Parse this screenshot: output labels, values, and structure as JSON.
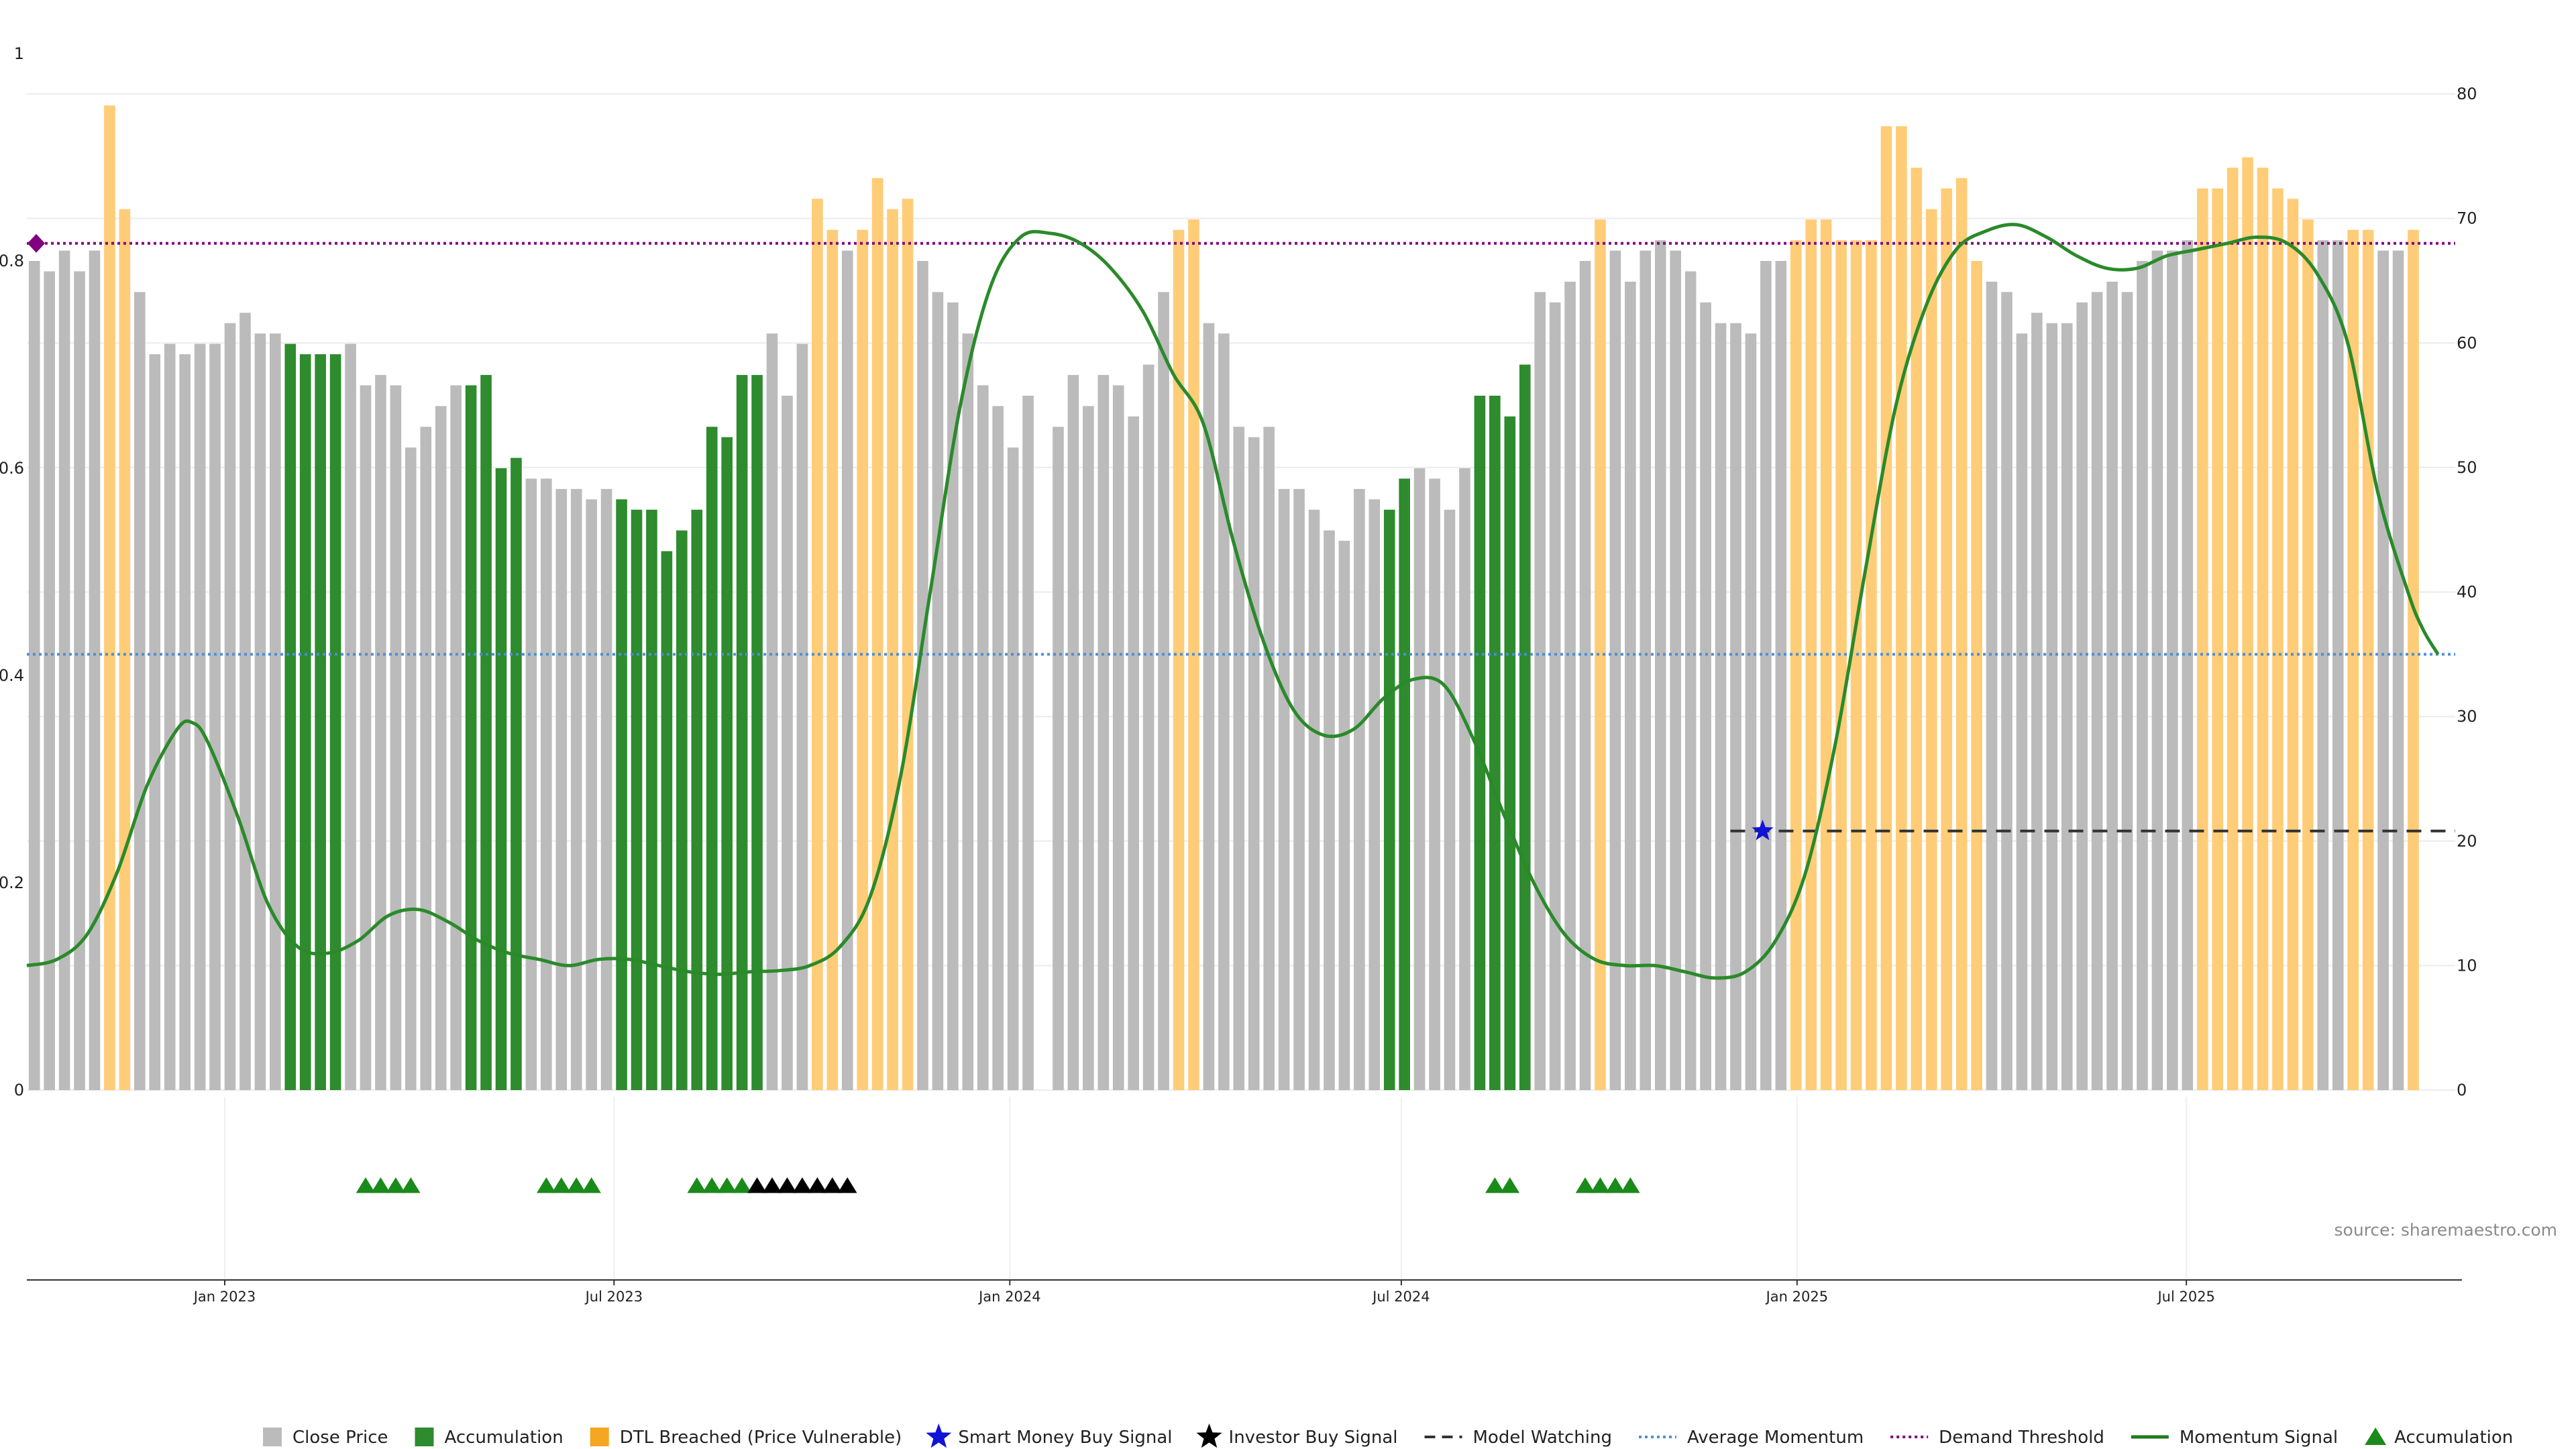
{
  "chart_data": {
    "type": "bar",
    "source": "source: sharemaestro.com",
    "left_axis": {
      "ticks": [
        "0",
        "0.2",
        "0.4",
        "0.6",
        "0.8",
        "1"
      ],
      "range": [
        0,
        1
      ]
    },
    "right_axis": {
      "ticks": [
        "0",
        "10",
        "20",
        "30",
        "40",
        "50",
        "60",
        "70",
        "80"
      ],
      "range": [
        0,
        80
      ]
    },
    "x_axis": {
      "range": [
        "2022-10-01",
        "2025-11-03"
      ],
      "ticks": [
        {
          "date": "2023-01-01",
          "label": "Jan 2023"
        },
        {
          "date": "2023-07-01",
          "label": "Jul 2023"
        },
        {
          "date": "2024-01-01",
          "label": "Jan 2024"
        },
        {
          "date": "2024-07-01",
          "label": "Jul 2024"
        },
        {
          "date": "2025-01-01",
          "label": "Jan 2025"
        },
        {
          "date": "2025-07-01",
          "label": "Jul 2025"
        }
      ]
    },
    "bars": {
      "start_date": "2022-10-01",
      "interval_days": 7,
      "values": [
        0.8,
        0.79,
        0.81,
        0.79,
        0.81,
        0.95,
        0.85,
        0.77,
        0.71,
        0.72,
        0.71,
        0.72,
        0.72,
        0.74,
        0.75,
        0.73,
        0.73,
        0.72,
        0.71,
        0.71,
        0.71,
        0.72,
        0.68,
        0.69,
        0.68,
        0.62,
        0.64,
        0.66,
        0.68,
        0.68,
        0.69,
        0.6,
        0.61,
        0.59,
        0.59,
        0.58,
        0.58,
        0.57,
        0.58,
        0.57,
        0.56,
        0.56,
        0.52,
        0.54,
        0.56,
        0.64,
        0.63,
        0.69,
        0.69,
        0.73,
        0.67,
        0.72,
        0.86,
        0.83,
        0.81,
        0.83,
        0.88,
        0.85,
        0.86,
        0.8,
        0.77,
        0.76,
        0.73,
        0.68,
        0.66,
        0.62,
        0.67,
        null,
        0.64,
        0.69,
        0.66,
        0.69,
        0.68,
        0.65,
        0.7,
        0.77,
        0.83,
        0.84,
        0.74,
        0.73,
        0.64,
        0.63,
        0.64,
        0.58,
        0.58,
        0.56,
        0.54,
        0.53,
        0.58,
        0.57,
        0.56,
        0.59,
        0.6,
        0.59,
        0.56,
        0.6,
        0.67,
        0.67,
        0.65,
        0.7,
        0.77,
        0.76,
        0.78,
        0.8,
        0.84,
        0.81,
        0.78,
        0.81,
        0.82,
        0.81,
        0.79,
        0.76,
        0.74,
        0.74,
        0.73,
        0.8,
        0.8,
        0.82,
        0.84,
        0.84,
        0.82,
        0.82,
        0.82,
        0.93,
        0.93,
        0.89,
        0.85,
        0.87,
        0.88,
        0.8,
        0.78,
        0.77,
        0.73,
        0.75,
        0.74,
        0.74,
        0.76,
        0.77,
        0.78,
        0.77,
        0.8,
        0.81,
        0.81,
        0.82,
        0.87,
        0.87,
        0.89,
        0.9,
        0.89,
        0.87,
        0.86,
        0.84,
        0.82,
        0.82,
        0.83,
        0.83,
        0.81,
        0.81,
        0.83
      ],
      "categories": [
        "close",
        "close",
        "close",
        "close",
        "close",
        "dtl",
        "dtl",
        "close",
        "close",
        "close",
        "close",
        "close",
        "close",
        "close",
        "close",
        "close",
        "close",
        "acc",
        "acc",
        "acc",
        "acc",
        "close",
        "close",
        "close",
        "close",
        "close",
        "close",
        "close",
        "close",
        "acc",
        "acc",
        "acc",
        "acc",
        "close",
        "close",
        "close",
        "close",
        "close",
        "close",
        "acc",
        "acc",
        "acc",
        "acc",
        "acc",
        "acc",
        "acc",
        "acc",
        "acc",
        "acc",
        "close",
        "close",
        "close",
        "dtl",
        "dtl",
        "close",
        "dtl",
        "dtl",
        "dtl",
        "dtl",
        "close",
        "close",
        "close",
        "close",
        "close",
        "close",
        "close",
        "close",
        null,
        "close",
        "close",
        "close",
        "close",
        "close",
        "close",
        "close",
        "close",
        "dtl",
        "dtl",
        "close",
        "close",
        "close",
        "close",
        "close",
        "close",
        "close",
        "close",
        "close",
        "close",
        "close",
        "close",
        "acc",
        "acc",
        "close",
        "close",
        "close",
        "close",
        "acc",
        "acc",
        "acc",
        "acc",
        "close",
        "close",
        "close",
        "close",
        "dtl",
        "close",
        "close",
        "close",
        "close",
        "close",
        "close",
        "close",
        "close",
        "close",
        "close",
        "close",
        "close",
        "dtl",
        "dtl",
        "dtl",
        "dtl",
        "dtl",
        "dtl",
        "dtl",
        "dtl",
        "dtl",
        "dtl",
        "dtl",
        "dtl",
        "dtl",
        "close",
        "close",
        "close",
        "close",
        "close",
        "close",
        "close",
        "close",
        "close",
        "close",
        "close",
        "close",
        "close",
        "close",
        "dtl",
        "dtl",
        "dtl",
        "dtl",
        "dtl",
        "dtl",
        "dtl",
        "dtl",
        "close",
        "close",
        "dtl",
        "dtl",
        "close",
        "close",
        "dtl"
      ]
    },
    "series": [
      {
        "name": "Momentum Signal",
        "axis": "right",
        "points": [
          [
            "2022-10-01",
            10.0
          ],
          [
            "2022-10-15",
            10.5
          ],
          [
            "2022-10-29",
            12.5
          ],
          [
            "2022-11-12",
            17.5
          ],
          [
            "2022-11-26",
            24.5
          ],
          [
            "2022-12-10",
            29.0
          ],
          [
            "2022-12-17",
            29.5
          ],
          [
            "2022-12-24",
            28.0
          ],
          [
            "2023-01-07",
            22.0
          ],
          [
            "2023-01-21",
            15.0
          ],
          [
            "2023-02-04",
            11.5
          ],
          [
            "2023-02-18",
            11.0
          ],
          [
            "2023-03-04",
            12.0
          ],
          [
            "2023-03-18",
            14.0
          ],
          [
            "2023-04-01",
            14.5
          ],
          [
            "2023-04-15",
            13.5
          ],
          [
            "2023-04-29",
            12.0
          ],
          [
            "2023-05-13",
            11.0
          ],
          [
            "2023-05-27",
            10.5
          ],
          [
            "2023-06-10",
            10.0
          ],
          [
            "2023-06-24",
            10.5
          ],
          [
            "2023-07-08",
            10.5
          ],
          [
            "2023-07-22",
            10.0
          ],
          [
            "2023-08-05",
            9.5
          ],
          [
            "2023-08-19",
            9.3
          ],
          [
            "2023-09-02",
            9.5
          ],
          [
            "2023-09-16",
            9.6
          ],
          [
            "2023-09-30",
            10.0
          ],
          [
            "2023-10-14",
            11.5
          ],
          [
            "2023-10-28",
            15.5
          ],
          [
            "2023-11-11",
            25.0
          ],
          [
            "2023-11-25",
            40.0
          ],
          [
            "2023-12-09",
            55.0
          ],
          [
            "2023-12-23",
            64.5
          ],
          [
            "2024-01-06",
            68.5
          ],
          [
            "2024-01-20",
            68.8
          ],
          [
            "2024-02-03",
            68.0
          ],
          [
            "2024-02-17",
            66.0
          ],
          [
            "2024-03-03",
            62.5
          ],
          [
            "2024-03-17",
            57.5
          ],
          [
            "2024-03-31",
            53.5
          ],
          [
            "2024-04-14",
            44.0
          ],
          [
            "2024-04-28",
            36.0
          ],
          [
            "2024-05-12",
            30.5
          ],
          [
            "2024-05-26",
            28.5
          ],
          [
            "2024-06-09",
            29.0
          ],
          [
            "2024-06-23",
            31.5
          ],
          [
            "2024-07-07",
            33.0
          ],
          [
            "2024-07-21",
            32.5
          ],
          [
            "2024-08-04",
            28.0
          ],
          [
            "2024-08-18",
            22.0
          ],
          [
            "2024-09-01",
            16.5
          ],
          [
            "2024-09-15",
            12.5
          ],
          [
            "2024-09-29",
            10.5
          ],
          [
            "2024-10-13",
            10.0
          ],
          [
            "2024-10-27",
            10.0
          ],
          [
            "2024-11-10",
            9.5
          ],
          [
            "2024-11-24",
            9.0
          ],
          [
            "2024-12-08",
            9.5
          ],
          [
            "2024-12-22",
            12.0
          ],
          [
            "2025-01-05",
            17.5
          ],
          [
            "2025-01-19",
            28.0
          ],
          [
            "2025-02-02",
            42.0
          ],
          [
            "2025-02-16",
            55.0
          ],
          [
            "2025-03-02",
            63.0
          ],
          [
            "2025-03-16",
            67.5
          ],
          [
            "2025-03-30",
            69.0
          ],
          [
            "2025-04-13",
            69.5
          ],
          [
            "2025-04-27",
            68.5
          ],
          [
            "2025-05-11",
            67.0
          ],
          [
            "2025-05-25",
            66.0
          ],
          [
            "2025-06-08",
            66.0
          ],
          [
            "2025-06-22",
            67.0
          ],
          [
            "2025-07-06",
            67.5
          ],
          [
            "2025-07-20",
            68.0
          ],
          [
            "2025-08-03",
            68.5
          ],
          [
            "2025-08-17",
            68.0
          ],
          [
            "2025-08-31",
            65.5
          ],
          [
            "2025-09-14",
            60.0
          ],
          [
            "2025-09-28",
            48.0
          ],
          [
            "2025-10-12",
            40.0
          ],
          [
            "2025-10-19",
            37.0
          ],
          [
            "2025-10-26",
            35.0
          ]
        ]
      }
    ],
    "reference_lines": [
      {
        "name": "Average Momentum",
        "axis": "right",
        "value": 35.0,
        "color": "#4c8fd6"
      },
      {
        "name": "Demand Threshold",
        "axis": "right",
        "value": 68.0,
        "color": "#800080"
      },
      {
        "name": "Model Watching",
        "axis": "left",
        "value": 0.25,
        "from_date": "2024-12-01",
        "color": "#333333"
      }
    ],
    "signals": {
      "smart_money_buy": [
        {
          "date": "2024-12-16",
          "value": 0.25
        }
      ],
      "accumulation_markers": [
        "2023-03-04",
        "2023-03-11",
        "2023-03-18",
        "2023-03-25",
        "2023-05-27",
        "2023-06-03",
        "2023-06-10",
        "2023-06-17",
        "2023-08-05",
        "2023-08-12",
        "2023-08-19",
        "2023-08-26",
        "2024-08-10",
        "2024-08-17",
        "2024-09-21",
        "2024-09-28",
        "2024-10-05",
        "2024-10-12"
      ],
      "investor_buy_markers": [
        "2023-09-02",
        "2023-09-09",
        "2023-09-16",
        "2023-09-23",
        "2023-09-30",
        "2023-10-07",
        "2023-10-14"
      ]
    },
    "legend": {
      "placement": "bottom",
      "items": [
        {
          "label": "Close Price",
          "kind": "square",
          "color": "#bbbbbb"
        },
        {
          "label": "Accumulation",
          "kind": "square",
          "color": "#2e8b2e"
        },
        {
          "label": "DTL Breached (Price Vulnerable)",
          "kind": "square",
          "color": "#f5a623"
        },
        {
          "label": "Smart Money Buy Signal",
          "kind": "star",
          "color": "#1212d6"
        },
        {
          "label": "Investor Buy Signal",
          "kind": "star",
          "color": "#000000"
        },
        {
          "label": "Model Watching",
          "kind": "dash",
          "color": "#333333"
        },
        {
          "label": "Average Momentum",
          "kind": "dot",
          "color": "#4c8fd6"
        },
        {
          "label": "Demand Threshold",
          "kind": "dot",
          "color": "#800080"
        },
        {
          "label": "Momentum Signal",
          "kind": "line",
          "color": "#1f7a1f"
        },
        {
          "label": "Accumulation",
          "kind": "triangle",
          "color": "#1a8a1a"
        }
      ]
    },
    "colors": {
      "close": "#bbbbbb",
      "acc": "#2e8b2e",
      "dtl": "#ffcc77",
      "momentum": "#2a8a2a",
      "diamond": "#800080"
    }
  }
}
